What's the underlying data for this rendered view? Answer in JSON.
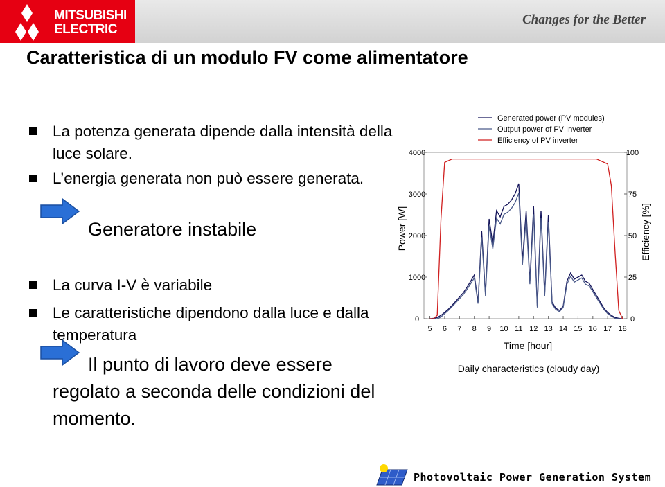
{
  "header": {
    "brand_lines": [
      "MITSUBISHI",
      "ELECTRIC"
    ],
    "slogan": "Changes for the Better"
  },
  "title": "Caratteristica di un modulo FV come alimentatore",
  "sections": [
    {
      "bullets": [
        "La potenza generata dipende dalla intensità della luce solare.",
        "L’energia generata non può essere generata."
      ],
      "note": "Generatore instabile"
    },
    {
      "bullets": [
        "La curva I-V è variabile",
        "Le caratteristiche dipendono dalla luce e dalla temperatura"
      ],
      "note": "Il punto di lavoro deve essere regolato a seconda delle condizioni del momento."
    }
  ],
  "chart_data": {
    "type": "line",
    "x_label": "Time [hour]",
    "y_label": "Power [W]",
    "y2_label": "Efficiency [%]",
    "caption": "Daily characteristics (cloudy day)",
    "xlim": [
      4.6,
      18.3
    ],
    "xticks": [
      5,
      6,
      7,
      8,
      9,
      10,
      11,
      12,
      13,
      14,
      15,
      16,
      17,
      18
    ],
    "ylim": [
      0,
      4000
    ],
    "yticks": [
      0,
      1000,
      2000,
      3000,
      4000
    ],
    "y2lim": [
      0,
      100
    ],
    "y2ticks": [
      0,
      25,
      50,
      75,
      100
    ],
    "x": [
      5,
      5.25,
      5.5,
      5.75,
      6,
      6.25,
      6.5,
      6.75,
      7,
      7.25,
      7.5,
      7.75,
      8,
      8.25,
      8.5,
      8.75,
      9,
      9.25,
      9.5,
      9.75,
      10,
      10.25,
      10.5,
      10.75,
      11,
      11.25,
      11.5,
      11.75,
      12,
      12.25,
      12.5,
      12.75,
      13,
      13.25,
      13.5,
      13.75,
      14,
      14.25,
      14.5,
      14.75,
      15,
      15.25,
      15.5,
      15.75,
      16,
      16.25,
      16.5,
      16.75,
      17,
      17.25,
      17.5,
      17.75,
      18
    ],
    "series": [
      {
        "name": "Generated power (PV modules)",
        "color": "#14145a",
        "values": [
          0,
          10,
          30,
          80,
          150,
          230,
          320,
          420,
          520,
          620,
          750,
          900,
          1050,
          400,
          2100,
          600,
          2400,
          1800,
          2600,
          2450,
          2700,
          2750,
          2850,
          3000,
          3250,
          1400,
          2600,
          900,
          2700,
          300,
          2600,
          600,
          2500,
          400,
          250,
          200,
          300,
          900,
          1100,
          950,
          1000,
          1050,
          900,
          850,
          700,
          550,
          400,
          250,
          150,
          80,
          30,
          10,
          0
        ]
      },
      {
        "name": "Output power of PV Inverter",
        "color": "#4a5a8a",
        "values": [
          0,
          0,
          0,
          40,
          120,
          200,
          290,
          385,
          480,
          575,
          700,
          840,
          980,
          360,
          1960,
          550,
          2240,
          1680,
          2420,
          2280,
          2510,
          2560,
          2650,
          2790,
          3020,
          1300,
          2420,
          830,
          2510,
          270,
          2420,
          550,
          2330,
          360,
          220,
          170,
          270,
          830,
          1020,
          880,
          930,
          980,
          830,
          790,
          650,
          500,
          360,
          220,
          120,
          60,
          10,
          0,
          0
        ]
      },
      {
        "name": "Efficiency of PV inverter",
        "color": "#d02020",
        "axis": "y2",
        "values": [
          0,
          0,
          2,
          60,
          94,
          95,
          96,
          96,
          96,
          96,
          96,
          96,
          96,
          96,
          96,
          96,
          96,
          96,
          96,
          96,
          96,
          96,
          96,
          96,
          96,
          96,
          96,
          96,
          96,
          96,
          96,
          96,
          96,
          96,
          96,
          96,
          96,
          96,
          96,
          96,
          96,
          96,
          96,
          96,
          96,
          96,
          95,
          94,
          93,
          80,
          40,
          5,
          0
        ]
      }
    ]
  },
  "footer": "Photovoltaic Power Generation System"
}
